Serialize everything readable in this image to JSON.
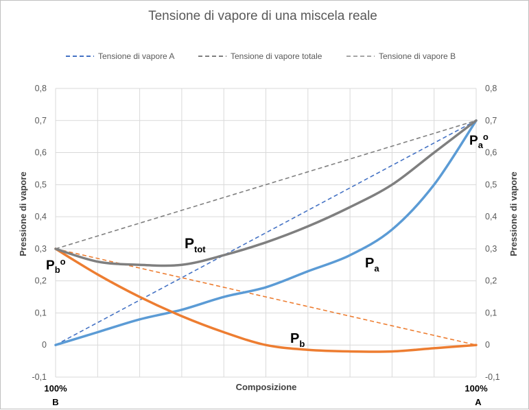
{
  "chart_data": {
    "type": "line",
    "title": "Tensione di vapore di una miscela reale",
    "xlabel": "Composizione",
    "ylabel_left": "Pressione di vapore",
    "ylabel_right": "Pressione di vapore",
    "x_tick_labels": {
      "left": "100%",
      "right": "100%"
    },
    "x_end_labels": {
      "left": "B",
      "right": "A"
    },
    "x_range": [
      0,
      1
    ],
    "ylim": [
      -0.1,
      0.8
    ],
    "y_ticks": [
      -0.1,
      0,
      0.1,
      0.2,
      0.3,
      0.4,
      0.5,
      0.6,
      0.7,
      0.8
    ],
    "y_tick_labels": [
      "-0,1",
      "0",
      "0,1",
      "0,2",
      "0,3",
      "0,4",
      "0,5",
      "0,6",
      "0,7",
      "0,8"
    ],
    "x_gridlines": 10,
    "legend": [
      {
        "label": "Tensione di vapore A",
        "color": "#4472c4"
      },
      {
        "label": "Tensione di vapore totale",
        "color": "#7f7f7f"
      },
      {
        "label": "Tensione di vapore B",
        "color": "#a5a5a5"
      }
    ],
    "legend_position": "top",
    "series": [
      {
        "name": "Tensione di vapore A",
        "style": "dashed",
        "color": "#4472c4",
        "x": [
          0,
          1
        ],
        "y": [
          0,
          0.7
        ]
      },
      {
        "name": "Tensione di vapore totale",
        "style": "dashed",
        "color": "#7f7f7f",
        "x": [
          0,
          1
        ],
        "y": [
          0.3,
          0.7
        ]
      },
      {
        "name": "Tensione di vapore B",
        "style": "dashed",
        "color": "#ed7d31",
        "x": [
          0,
          1
        ],
        "y": [
          0.3,
          0
        ]
      },
      {
        "name": "Pa",
        "style": "solid",
        "color": "#5b9bd5",
        "x": [
          0,
          0.1,
          0.2,
          0.3,
          0.4,
          0.5,
          0.6,
          0.7,
          0.8,
          0.9,
          1
        ],
        "y": [
          0,
          0.04,
          0.08,
          0.11,
          0.15,
          0.18,
          0.23,
          0.28,
          0.36,
          0.5,
          0.7
        ]
      },
      {
        "name": "Pb",
        "style": "solid",
        "color": "#ed7d31",
        "x": [
          0,
          0.1,
          0.2,
          0.3,
          0.4,
          0.5,
          0.6,
          0.7,
          0.8,
          0.9,
          1
        ],
        "y": [
          0.3,
          0.22,
          0.15,
          0.09,
          0.04,
          0,
          -0.015,
          -0.02,
          -0.02,
          -0.01,
          0
        ]
      },
      {
        "name": "Ptot",
        "style": "solid",
        "color": "#7f7f7f",
        "x": [
          0,
          0.1,
          0.2,
          0.3,
          0.4,
          0.5,
          0.6,
          0.7,
          0.8,
          0.9,
          1
        ],
        "y": [
          0.3,
          0.26,
          0.25,
          0.25,
          0.28,
          0.32,
          0.37,
          0.43,
          0.5,
          0.6,
          0.7
        ]
      }
    ],
    "annotations": [
      {
        "text": "P",
        "sub": "tot",
        "near_series": "Ptot"
      },
      {
        "text": "P",
        "sub": "a",
        "near_series": "Pa"
      },
      {
        "text": "P",
        "sub": "b",
        "near_series": "Pb"
      },
      {
        "text": "P",
        "sub": "b",
        "sup": "o",
        "position": "left-at-0.3"
      },
      {
        "text": "P",
        "sub": "a",
        "sup": "o",
        "position": "right-at-0.7"
      }
    ]
  }
}
